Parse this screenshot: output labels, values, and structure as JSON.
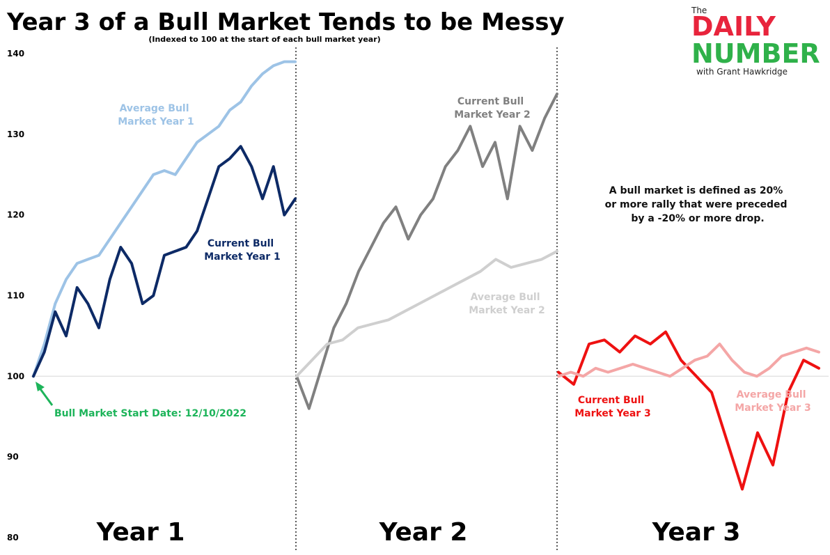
{
  "chart_data": {
    "type": "line",
    "title": "Year 3 of a Bull Market Tends to be Messy",
    "subtitle": "(Indexed to 100 at the start of each bull market year)",
    "ylim": [
      80,
      140
    ],
    "yticks": [
      "80",
      "90",
      "100",
      "110",
      "120",
      "130",
      "140"
    ],
    "baseline": 100,
    "panels": [
      {
        "label": "Year 1",
        "series": [
          {
            "name": "Average Bull Market Year 1",
            "label_lines": [
              "Average Bull",
              "Market Year 1"
            ],
            "color": "#9dc3e6",
            "values": [
              100,
              104,
              109,
              112,
              114,
              114.5,
              115,
              117,
              119,
              121,
              123,
              125,
              125.5,
              125,
              127,
              129,
              130,
              131,
              133,
              134,
              136,
              137.5,
              138.5,
              139,
              139
            ]
          },
          {
            "name": "Current Bull Market Year 1",
            "label_lines": [
              "Current Bull",
              "Market Year 1"
            ],
            "color": "#0d2a66",
            "values": [
              100,
              103,
              108,
              105,
              111,
              109,
              106,
              112,
              116,
              114,
              109,
              110,
              115,
              115.5,
              116,
              118,
              122,
              126,
              127,
              128.5,
              126,
              122,
              126,
              120,
              122
            ]
          }
        ]
      },
      {
        "label": "Year 2",
        "series": [
          {
            "name": "Current Bull Market Year 2",
            "label_lines": [
              "Current Bull",
              "Market Year 2"
            ],
            "color": "#808080",
            "values": [
              100,
              96,
              101,
              106,
              109,
              113,
              116,
              119,
              121,
              117,
              120,
              122,
              126,
              128,
              131,
              126,
              129,
              122,
              131,
              128,
              132,
              135
            ]
          },
          {
            "name": "Average Bull Market Year 2",
            "label_lines": [
              "Average Bull",
              "Market Year 2"
            ],
            "color": "#cfcfcf",
            "values": [
              100,
              102,
              104,
              104.5,
              106,
              106.5,
              107,
              108,
              109,
              110,
              111,
              112,
              113,
              114.5,
              113.5,
              114,
              114.5,
              115.5
            ]
          }
        ]
      },
      {
        "label": "Year 3",
        "series": [
          {
            "name": "Current Bull Market Year 3",
            "label_lines": [
              "Current Bull",
              "Market Year 3"
            ],
            "color": "#ee1111",
            "values": [
              100.5,
              99,
              104,
              104.5,
              103,
              105,
              104,
              105.5,
              102,
              100,
              98,
              92,
              86,
              93,
              89,
              98,
              102,
              101
            ]
          },
          {
            "name": "Average Bull Market Year 3",
            "label_lines": [
              "Average Bull",
              "Market Year 3"
            ],
            "color": "#f4a6a6",
            "values": [
              100,
              100.5,
              100,
              101,
              100.5,
              101,
              101.5,
              101,
              100.5,
              100,
              101,
              102,
              102.5,
              104,
              102,
              100.5,
              100,
              101,
              102.5,
              103,
              103.5,
              103
            ]
          }
        ]
      }
    ],
    "annotations": {
      "start_date": "Bull Market Start Date: 12/10/2022",
      "definition_lines": [
        "A bull market is defined as 20%",
        "or more rally that were preceded",
        "by a -20% or more drop."
      ]
    }
  },
  "logo": {
    "the": "The",
    "daily": "DAILY",
    "number": "NUMBER",
    "byline": "with Grant Hawkridge",
    "colors": {
      "daily": "#e8243c",
      "number": "#2fb14a"
    }
  },
  "colors": {
    "start_arrow": "#1db45a",
    "divider": "#000000",
    "baseline": "#e3e3e3"
  }
}
